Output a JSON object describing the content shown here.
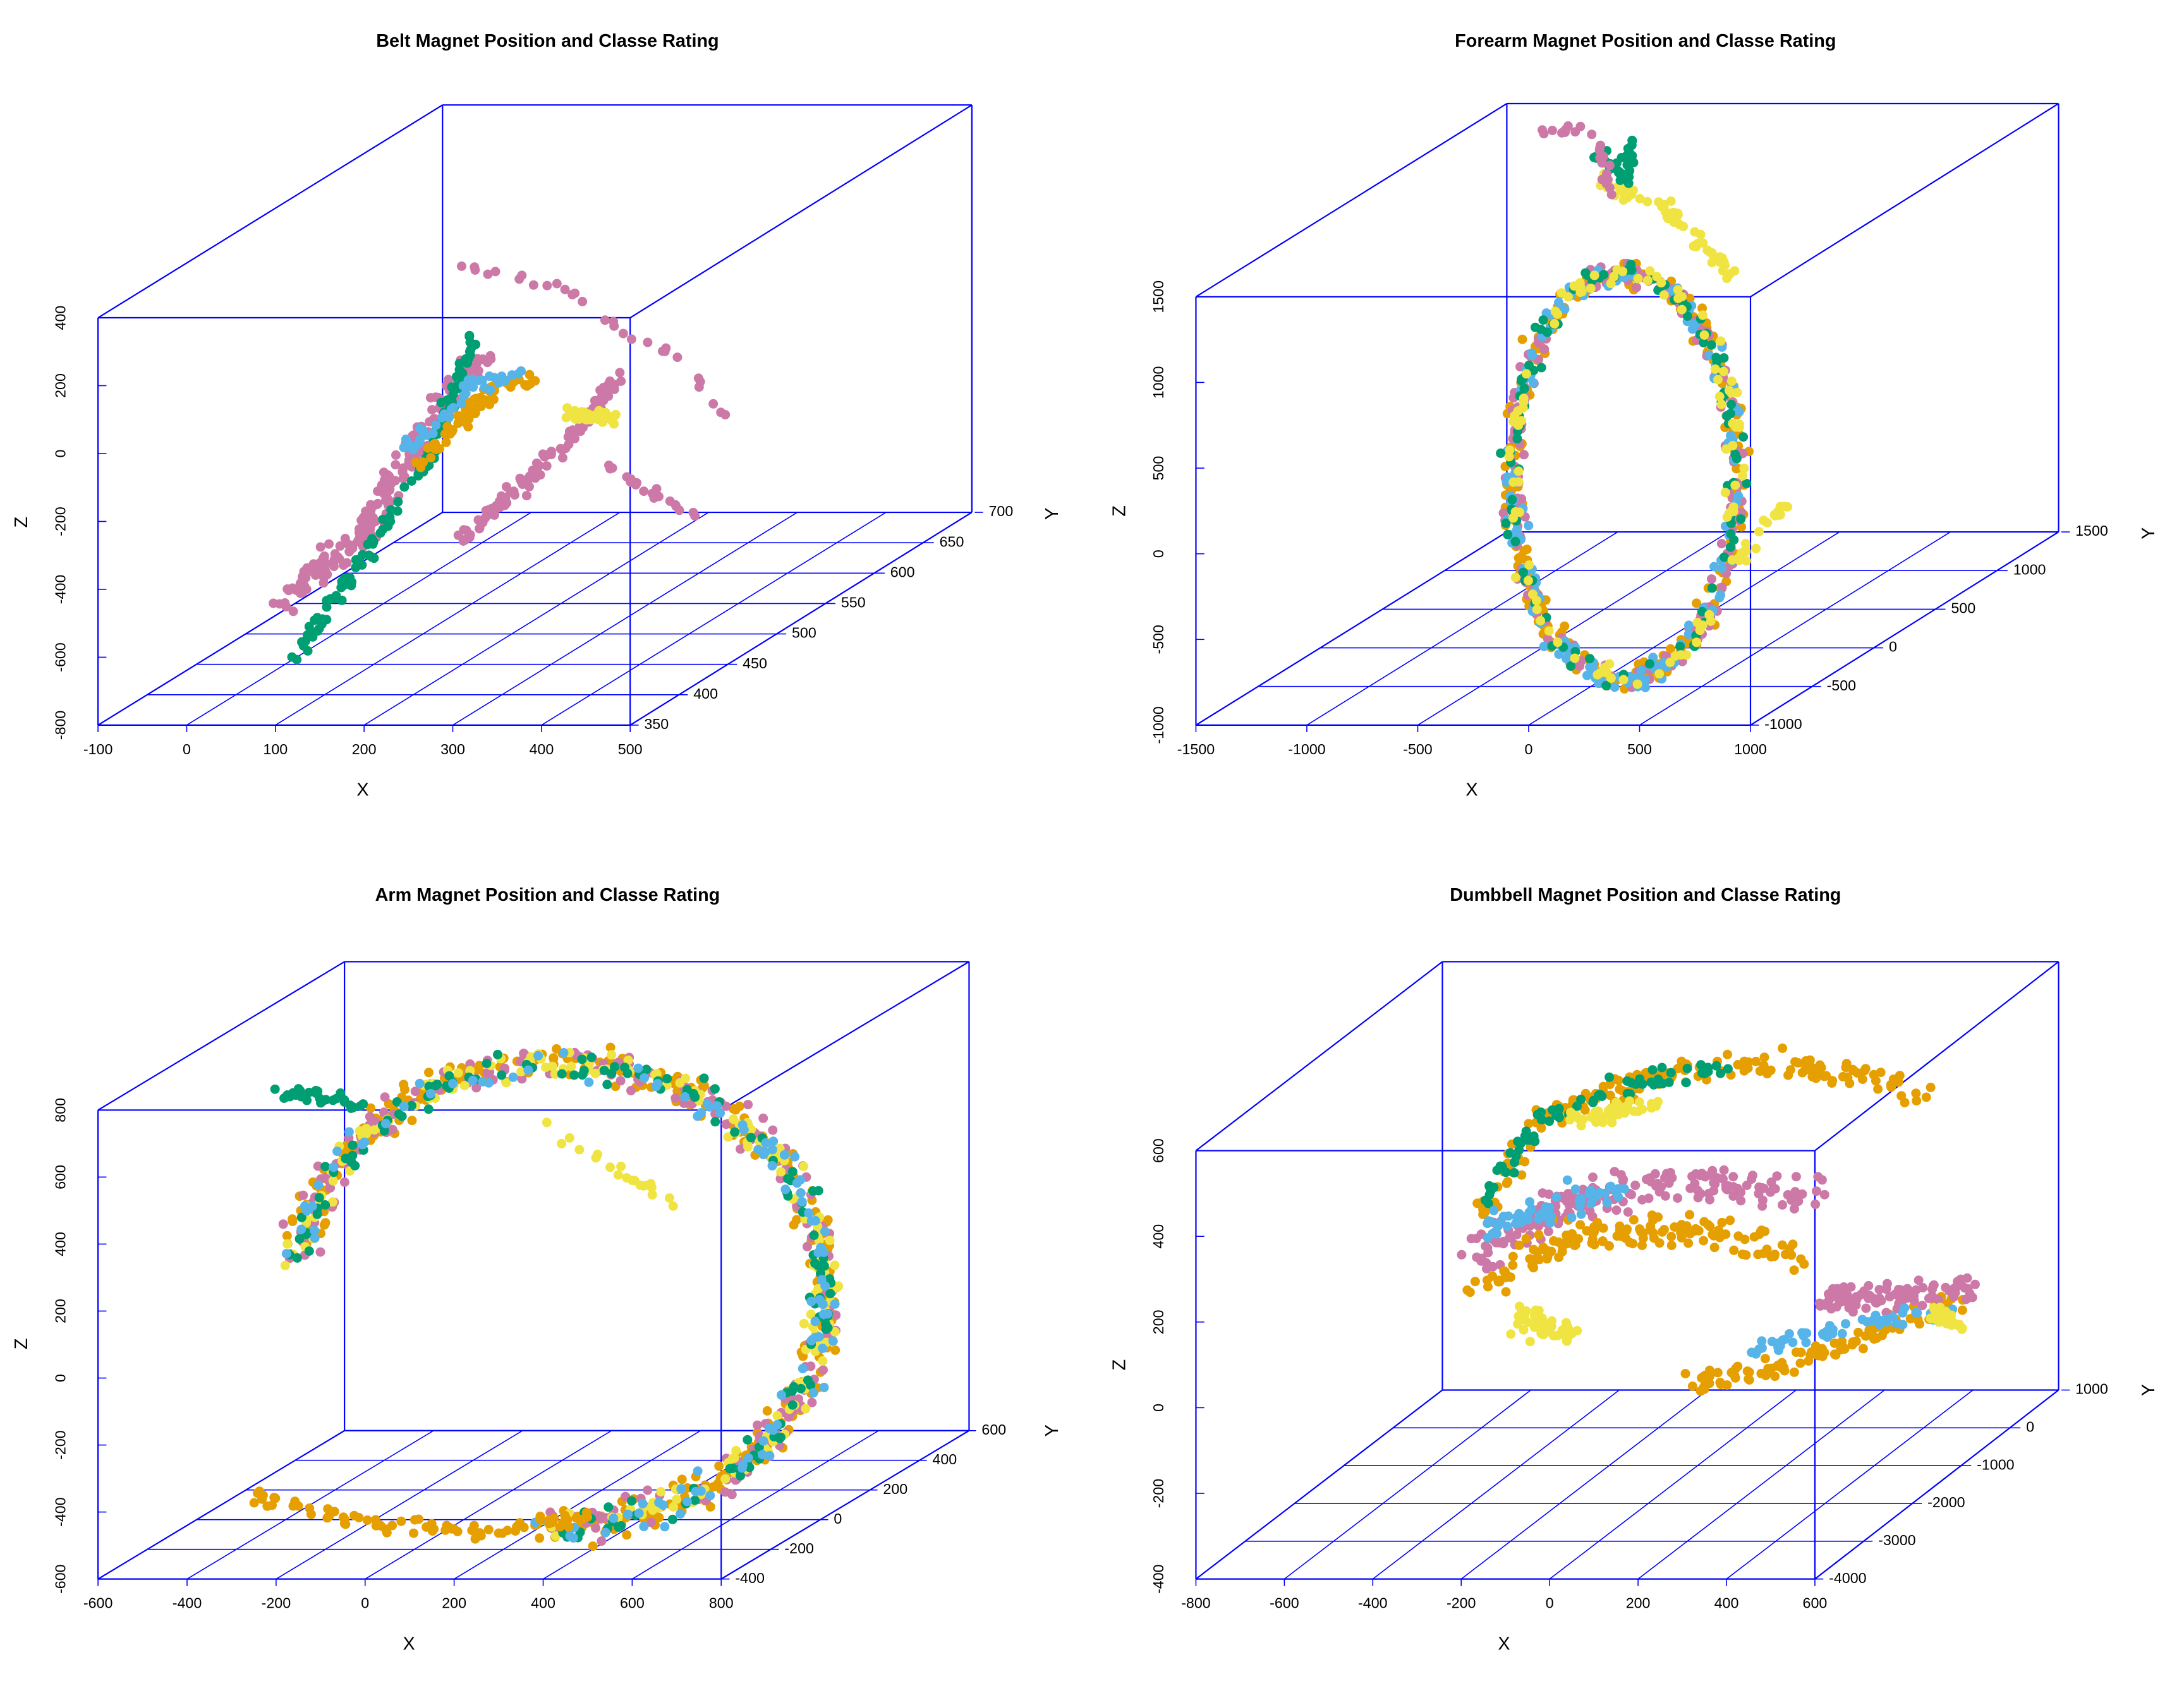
{
  "colors": {
    "box": "#0000ff",
    "classes": [
      "#cc79a7",
      "#009e73",
      "#56b4e9",
      "#e69f00",
      "#f0e442"
    ]
  },
  "chart_data": [
    {
      "type": "scatter",
      "title": "Belt Magnet Position and Classe Rating",
      "xlabel": "X",
      "ylabel": "Y",
      "zlabel": "Z",
      "xlim": [
        -100,
        500
      ],
      "ylim": [
        350,
        700
      ],
      "zlim": [
        -800,
        400
      ],
      "x_ticks": [
        "-100",
        "0",
        "100",
        "200",
        "300",
        "400",
        "500"
      ],
      "y_ticks": [
        "350",
        "400",
        "450",
        "500",
        "550",
        "600",
        "650",
        "700"
      ],
      "z_ticks": [
        "-800",
        "-600",
        "-400",
        "-200",
        "0",
        "200",
        "400"
      ],
      "grid": true
    },
    {
      "type": "scatter",
      "title": "Forearm Magnet Position and Classe Rating",
      "xlabel": "X",
      "ylabel": "Y",
      "zlabel": "Z",
      "xlim": [
        -1500,
        1000
      ],
      "ylim": [
        -1000,
        1500
      ],
      "zlim": [
        -1000,
        1500
      ],
      "x_ticks": [
        "-1500",
        "-1000",
        "-500",
        "0",
        "500",
        "1000"
      ],
      "y_ticks": [
        "-1000",
        "-500",
        "0",
        "500",
        "1000",
        "1500"
      ],
      "z_ticks": [
        "-1000",
        "-500",
        "0",
        "500",
        "1000",
        "1500"
      ],
      "grid": true
    },
    {
      "type": "scatter",
      "title": "Arm Magnet Position and Classe Rating",
      "xlabel": "X",
      "ylabel": "Y",
      "zlabel": "Z",
      "xlim": [
        -600,
        800
      ],
      "ylim": [
        -400,
        600
      ],
      "zlim": [
        -600,
        800
      ],
      "x_ticks": [
        "-600",
        "-400",
        "-200",
        "0",
        "200",
        "400",
        "600",
        "800"
      ],
      "y_ticks": [
        "-400",
        "-200",
        "0",
        "200",
        "400",
        "600"
      ],
      "z_ticks": [
        "-600",
        "-400",
        "-200",
        "0",
        "200",
        "400",
        "600",
        "800"
      ],
      "grid": true
    },
    {
      "type": "scatter",
      "title": "Dumbbell Magnet Position and Classe Rating",
      "xlabel": "X",
      "ylabel": "Y",
      "zlabel": "Z",
      "xlim": [
        -800,
        600
      ],
      "ylim": [
        -4000,
        1000
      ],
      "zlim": [
        -400,
        600
      ],
      "x_ticks": [
        "-800",
        "-600",
        "-400",
        "-200",
        "0",
        "200",
        "400",
        "600"
      ],
      "y_ticks": [
        "-4000",
        "-3000",
        "-2000",
        "-1000",
        "0",
        "1000"
      ],
      "z_ticks": [
        "-400",
        "-200",
        "0",
        "200",
        "400",
        "600"
      ],
      "grid": true
    }
  ]
}
